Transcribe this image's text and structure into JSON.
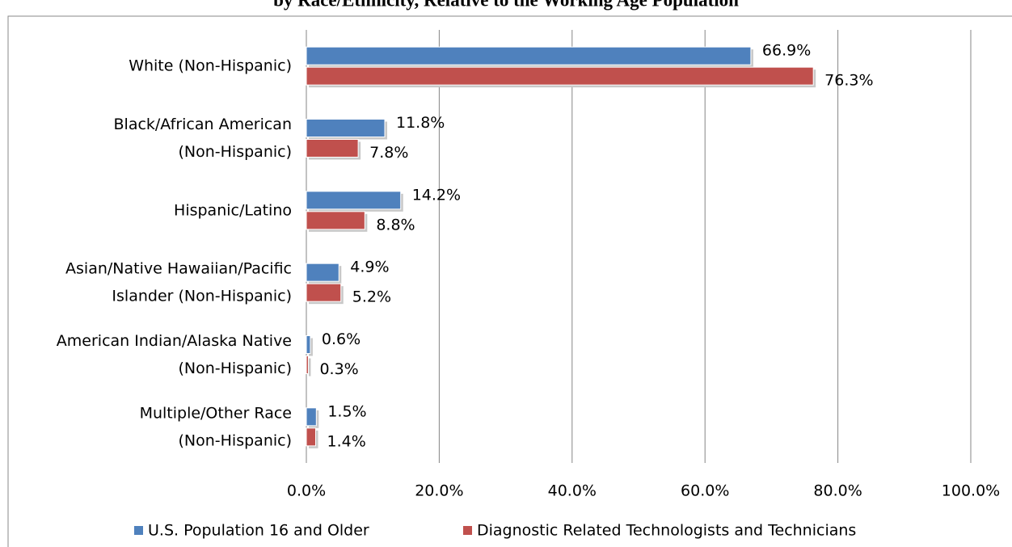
{
  "chart_data": {
    "type": "bar",
    "orientation": "horizontal",
    "title": "by Race/Ethnicity, Relative to the Working Age Population",
    "categories": [
      "White (Non-Hispanic)",
      "Black/African American\n(Non-Hispanic)",
      "Hispanic/Latino",
      "Asian/Native Hawaiian/Pacific\nIslander (Non-Hispanic)",
      "American Indian/Alaska Native\n(Non-Hispanic)",
      "Multiple/Other Race\n(Non-Hispanic)"
    ],
    "series": [
      {
        "name": "U.S. Population 16 and Older",
        "color": "#4f81bd",
        "values": [
          66.9,
          11.8,
          14.2,
          4.9,
          0.6,
          1.5
        ],
        "value_labels": [
          "66.9%",
          "11.8%",
          "14.2%",
          "4.9%",
          "0.6%",
          "1.5%"
        ]
      },
      {
        "name": "Diagnostic Related Technologists and Technicians",
        "color": "#c0504d",
        "values": [
          76.3,
          7.8,
          8.8,
          5.2,
          0.3,
          1.4
        ],
        "value_labels": [
          "76.3%",
          "7.8%",
          "8.8%",
          "5.2%",
          "0.3%",
          "1.4%"
        ]
      }
    ],
    "xlim": [
      0,
      100
    ],
    "xticks": [
      {
        "value": 0,
        "label": "0.0%"
      },
      {
        "value": 20,
        "label": "20.0%"
      },
      {
        "value": 40,
        "label": "40.0%"
      },
      {
        "value": 60,
        "label": "60.0%"
      },
      {
        "value": 80,
        "label": "80.0%"
      },
      {
        "value": 100,
        "label": "100.0%"
      }
    ],
    "grid": true,
    "legend": "bottom"
  }
}
